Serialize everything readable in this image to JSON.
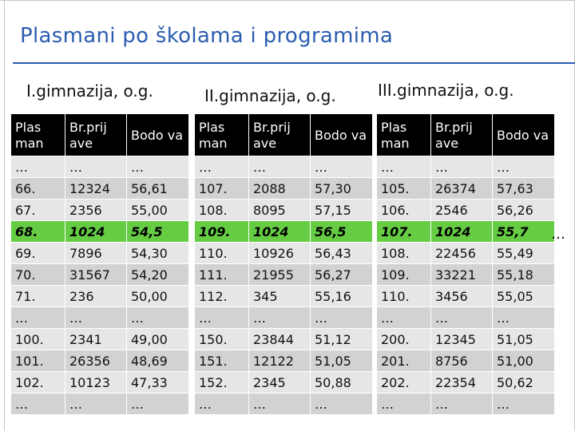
{
  "title": "Plasmani po školama i programima",
  "side_ellipsis": "…",
  "tables": [
    {
      "heading": "I.gimnazija, o.g.",
      "headers": [
        "Plas man",
        "Br.prij ave",
        "Bodo va"
      ],
      "rows": [
        [
          "…",
          "…",
          "…"
        ],
        [
          "66.",
          "12324",
          "56,61"
        ],
        [
          "67.",
          "2356",
          "55,00"
        ],
        [
          "68.",
          "1024",
          "54,5"
        ],
        [
          "69.",
          "7896",
          "54,30"
        ],
        [
          "70.",
          "31567",
          "54,20"
        ],
        [
          "71.",
          "236",
          "50,00"
        ],
        [
          "…",
          "…",
          "…"
        ],
        [
          "100.",
          "2341",
          "49,00"
        ],
        [
          "101.",
          "26356",
          "48,69"
        ],
        [
          "102.",
          "10123",
          "47,33"
        ],
        [
          "…",
          "…",
          "…"
        ]
      ]
    },
    {
      "heading": "II.gimnazija, o.g.",
      "headers": [
        "Plas man",
        "Br.prij ave",
        "Bodo va"
      ],
      "rows": [
        [
          "…",
          "…",
          "…"
        ],
        [
          "107.",
          "2088",
          "57,30"
        ],
        [
          "108.",
          "8095",
          "57,15"
        ],
        [
          "109.",
          "1024",
          "56,5"
        ],
        [
          "110.",
          "10926",
          "56,43"
        ],
        [
          "111.",
          "21955",
          "56,27"
        ],
        [
          "112.",
          "345",
          "55,16"
        ],
        [
          "…",
          "…",
          "…"
        ],
        [
          "150.",
          "23844",
          "51,12"
        ],
        [
          "151.",
          "12122",
          "51,05"
        ],
        [
          "152.",
          "2345",
          "50,88"
        ],
        [
          "…",
          "…",
          "…"
        ]
      ]
    },
    {
      "heading": "III.gimnazija, o.g.",
      "headers": [
        "Plas man",
        "Br.prij ave",
        "Bodo va"
      ],
      "rows": [
        [
          "…",
          "…",
          "…"
        ],
        [
          "105.",
          "26374",
          "57,63"
        ],
        [
          "106.",
          "2546",
          "56,26"
        ],
        [
          "107.",
          "1024",
          "55,7"
        ],
        [
          "108.",
          "22456",
          "55,49"
        ],
        [
          "109.",
          "33221",
          "55,18"
        ],
        [
          "110.",
          "3456",
          "55,05"
        ],
        [
          "…",
          "…",
          "…"
        ],
        [
          "200.",
          "12345",
          "51,05"
        ],
        [
          "201.",
          "8756",
          "51,00"
        ],
        [
          "202.",
          "22354",
          "50,62"
        ],
        [
          "…",
          "…",
          "…"
        ]
      ]
    }
  ]
}
